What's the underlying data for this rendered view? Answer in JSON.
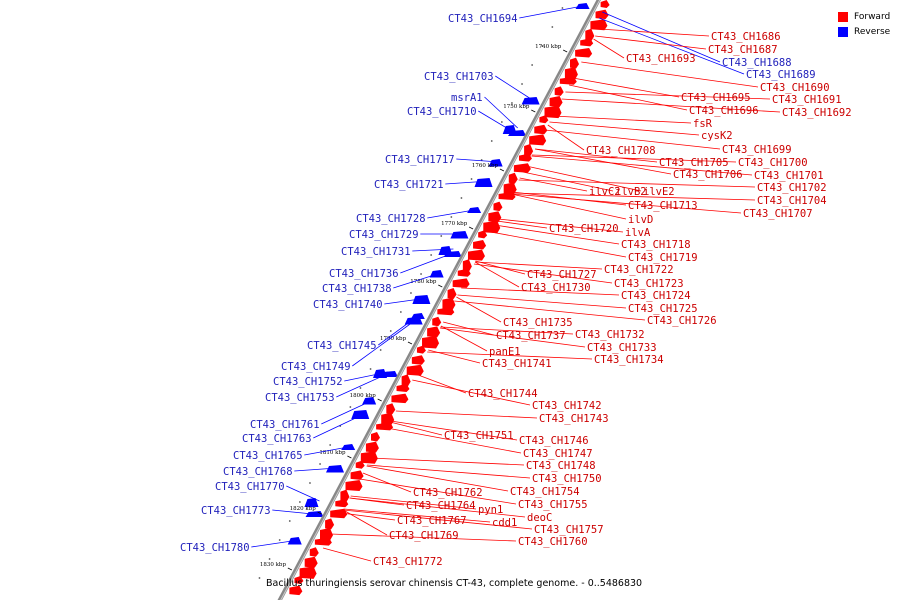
{
  "caption": "Bacillus thuringiensis serovar chinensis CT-43, complete genome. - 0..5486830",
  "legend": [
    {
      "label": "Forward",
      "color": "#ff0000"
    },
    {
      "label": "Reverse",
      "color": "#0000ff"
    }
  ],
  "colors": {
    "forward": "#ff0000",
    "forward_text": "#cc0000",
    "reverse": "#0000ff",
    "reverse_text": "#2222bb",
    "backbone": "#888888"
  },
  "kbp_ticks": [
    "1740 kbp",
    "1750 kbp",
    "1760 kbp",
    "1770 kbp",
    "1780 kbp",
    "1790 kbp",
    "1800 kbp",
    "1810 kbp",
    "1820 kbp",
    "1830 kbp"
  ],
  "reverse_genes": [
    "CT43_CH1694",
    "CT43_CH1703",
    "msrA1",
    "CT43_CH1710",
    "CT43_CH1717",
    "CT43_CH1721",
    "CT43_CH1728",
    "CT43_CH1729",
    "CT43_CH1731",
    "CT43_CH1736",
    "CT43_CH1738",
    "CT43_CH1740",
    "CT43_CH1745",
    "CT43_CH1749",
    "CT43_CH1752",
    "CT43_CH1753",
    "CT43_CH1761",
    "CT43_CH1763",
    "CT43_CH1765",
    "CT43_CH1768",
    "CT43_CH1770",
    "CT43_CH1773",
    "CT43_CH1780"
  ],
  "reverse_side_forward_labels": [
    "CT43_CH1688",
    "CT43_CH1689"
  ],
  "forward_genes": [
    "CT43_CH1686",
    "CT43_CH1687",
    "CT43_CH1693",
    "CT43_CH1690",
    "CT43_CH1691",
    "CT43_CH1692",
    "CT43_CH1695",
    "CT43_CH1696",
    "fsR",
    "cysK2",
    "CT43_CH1699",
    "CT43_CH1708",
    "CT43_CH1700",
    "CT43_CH1705",
    "CT43_CH1701",
    "CT43_CH1706",
    "CT43_CH1702",
    "ilvC2",
    "ilvB2",
    "ilvE2",
    "CT43_CH1704",
    "CT43_CH1713",
    "CT43_CH1707",
    "ilvD",
    "CT43_CH1720",
    "ilvA",
    "CT43_CH1718",
    "CT43_CH1719",
    "CT43_CH1722",
    "CT43_CH1727",
    "CT43_CH1723",
    "CT43_CH1730",
    "CT43_CH1724",
    "CT43_CH1725",
    "CT43_CH1726",
    "CT43_CH1735",
    "CT43_CH1732",
    "CT43_CH1737",
    "CT43_CH1733",
    "panE1",
    "CT43_CH1734",
    "CT43_CH1741",
    "CT43_CH1744",
    "CT43_CH1742",
    "CT43_CH1743",
    "CT43_CH1751",
    "CT43_CH1746",
    "CT43_CH1747",
    "CT43_CH1748",
    "CT43_CH1750",
    "CT43_CH1762",
    "CT43_CH1754",
    "CT43_CH1764",
    "pyn1",
    "deoC",
    "CT43_CH1755",
    "CT43_CH1767",
    "cdd1",
    "CT43_CH1757",
    "CT43_CH1769",
    "CT43_CH1760",
    "CT43_CH1772"
  ]
}
